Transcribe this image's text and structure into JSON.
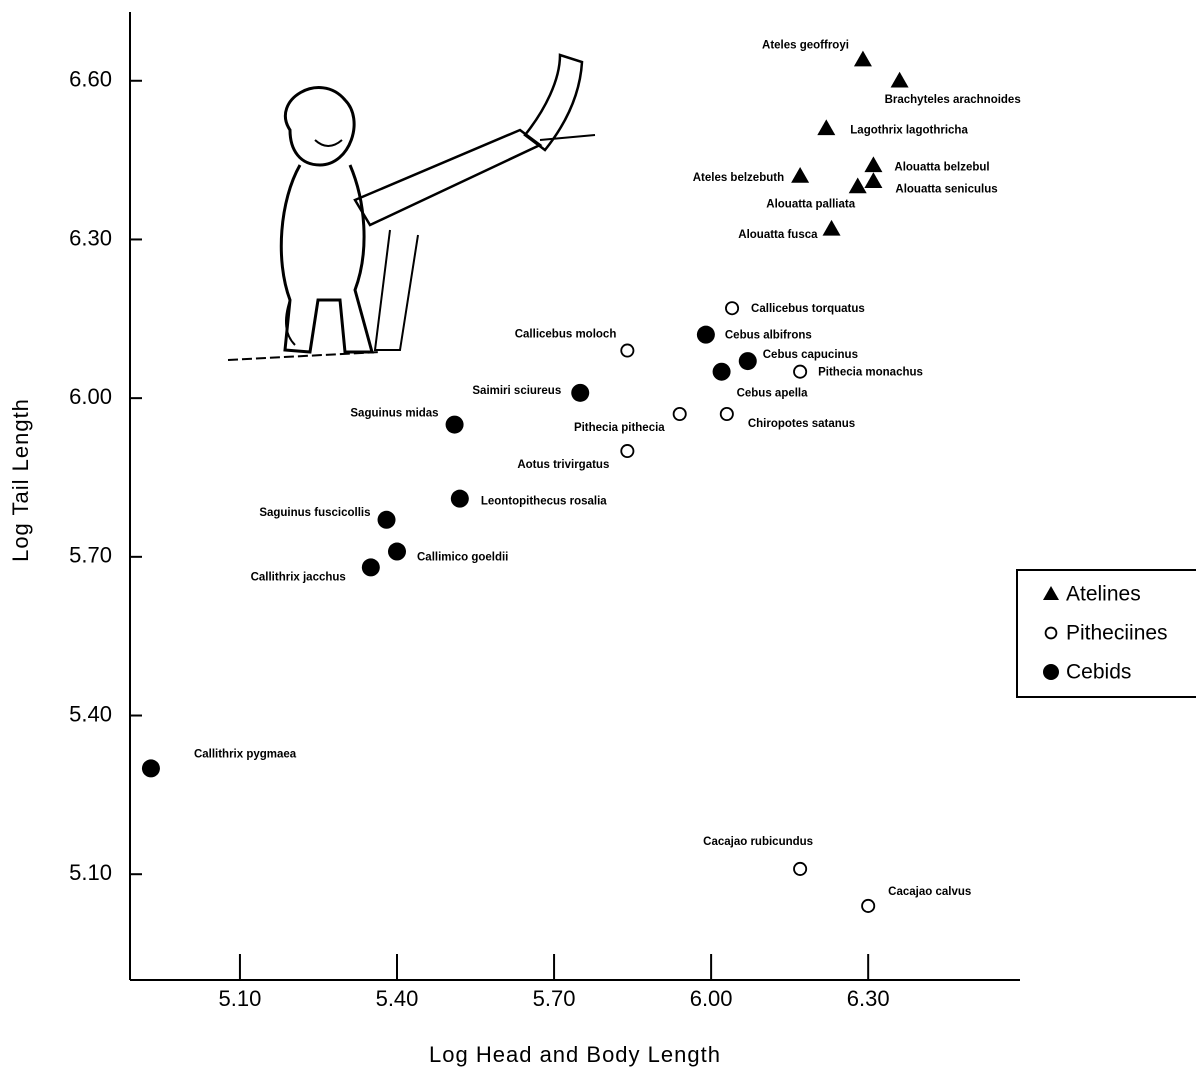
{
  "chart_data": {
    "type": "scatter",
    "x_label": "Log Head and Body Length",
    "y_label": "Log Tail Length",
    "xlim": [
      4.89,
      6.59
    ],
    "ylim": [
      4.9,
      6.73
    ],
    "xticks": [
      {
        "value": 5.1,
        "label": "5.10"
      },
      {
        "value": 5.4,
        "label": "5.40"
      },
      {
        "value": 5.7,
        "label": "5.70"
      },
      {
        "value": 6.0,
        "label": "6.00"
      },
      {
        "value": 6.3,
        "label": "6.30"
      }
    ],
    "yticks": [
      {
        "value": 5.1,
        "label": "5.10"
      },
      {
        "value": 5.4,
        "label": "5.40"
      },
      {
        "value": 5.7,
        "label": "5.70"
      },
      {
        "value": 6.0,
        "label": "6.00"
      },
      {
        "value": 6.3,
        "label": "6.30"
      },
      {
        "value": 6.6,
        "label": "6.60"
      }
    ],
    "legend": "right",
    "series": [
      {
        "name": "Atelines",
        "marker": "triangle",
        "color": "#000000",
        "labels": [
          "Ateles geoffroyi",
          "Brachyteles arachnoides",
          "Lagothrix lagothricha",
          "Alouatta belzebul",
          "Ateles belzebuth",
          "Alouatta seniculus",
          "Alouatta palliata",
          "Alouatta fusca"
        ],
        "x": [
          6.29,
          6.36,
          6.22,
          6.31,
          6.17,
          6.31,
          6.28,
          6.23
        ],
        "values": [
          6.64,
          6.6,
          6.51,
          6.44,
          6.42,
          6.41,
          6.4,
          6.32
        ]
      },
      {
        "name": "Pitheciines",
        "marker": "open-circle",
        "color": "#000000",
        "labels": [
          "Callicebus torquatus",
          "Callicebus moloch",
          "Pithecia monachus",
          "Pithecia pithecia",
          "Chiropotes satanus",
          "Aotus trivirgatus",
          "Cacajao rubicundus",
          "Cacajao calvus"
        ],
        "x": [
          6.04,
          5.84,
          6.17,
          5.94,
          6.03,
          5.84,
          6.17,
          6.3
        ],
        "values": [
          6.17,
          6.09,
          6.05,
          5.97,
          5.97,
          5.9,
          5.11,
          5.04
        ]
      },
      {
        "name": "Cebids",
        "marker": "circle",
        "color": "#000000",
        "labels": [
          "Cebus albifrons",
          "Cebus capucinus",
          "Cebus apella",
          "Saimiri sciureus",
          "Saguinus midas",
          "Leontopithecus rosalia",
          "Saguinus fuscicollis",
          "Callimico goeldii",
          "Callithrix jacchus",
          "Callithrix pygmaea"
        ],
        "x": [
          5.99,
          6.07,
          6.02,
          5.75,
          5.51,
          5.52,
          5.38,
          5.4,
          5.35,
          4.93
        ],
        "values": [
          6.12,
          6.07,
          6.05,
          6.01,
          5.95,
          5.81,
          5.77,
          5.71,
          5.68,
          5.3
        ]
      }
    ]
  }
}
